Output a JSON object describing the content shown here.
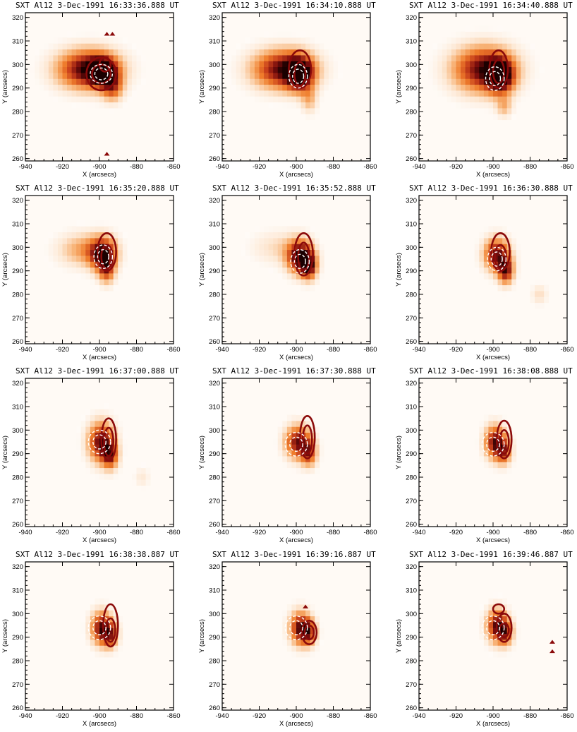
{
  "chart_data": {
    "type": "heatmap",
    "colormap": [
      "#ffffff",
      "#fde7d2",
      "#f8b57a",
      "#ef7d2c",
      "#c8401b",
      "#7a0d0d",
      "#1a0000"
    ],
    "contour_colors": {
      "hard_xray": "#8b0a0a",
      "soft_xray_peak": "#ffffff"
    },
    "common": {
      "instrument": "SXT Al12",
      "date": "3-Dec-1991",
      "suffix": "UT",
      "xlabel": "X (arcsecs)",
      "ylabel": "Y (arcsecs)",
      "xlim": [
        -940,
        -860
      ],
      "ylim": [
        259,
        322
      ],
      "xticks": [
        "-940",
        "-920",
        "-900",
        "-880",
        "-860"
      ],
      "yticks": [
        "260",
        "270",
        "280",
        "290",
        "300",
        "310",
        "320"
      ]
    },
    "panels": [
      {
        "time": "16:33:36.888",
        "sources": [
          [
            -906,
            298,
            0.95,
            12,
            6
          ],
          [
            -898,
            297,
            0.8,
            5,
            4
          ],
          [
            -893,
            290,
            0.5,
            4,
            4
          ]
        ],
        "red": [
          [
            -899,
            296,
            8,
            7
          ],
          [
            -899,
            296,
            5,
            4
          ],
          [
            -897,
            300,
            3,
            3
          ]
        ],
        "white": [
          [
            -899,
            296,
            6,
            4
          ],
          [
            -899,
            296,
            3.5,
            2.5
          ]
        ],
        "extra": [
          [
            -896,
            313
          ],
          [
            -893,
            313
          ],
          [
            -896,
            262
          ]
        ]
      },
      {
        "time": "16:34:10.888",
        "sources": [
          [
            -907,
            298,
            0.9,
            12,
            6
          ],
          [
            -898,
            296,
            0.8,
            5,
            5
          ],
          [
            -893,
            285,
            0.3,
            3,
            4
          ]
        ],
        "red": [
          [
            -898,
            298,
            6,
            8
          ],
          [
            -898,
            296,
            3,
            5
          ]
        ],
        "white": [
          [
            -899,
            295,
            5,
            5
          ],
          [
            -899,
            295,
            3,
            3
          ]
        ],
        "extra": []
      },
      {
        "time": "16:34:40.888",
        "sources": [
          [
            -905,
            298,
            0.9,
            12,
            7
          ],
          [
            -896,
            295,
            0.85,
            5,
            5
          ],
          [
            -894,
            282,
            0.3,
            3,
            3
          ]
        ],
        "red": [
          [
            -897,
            298,
            5,
            8
          ],
          [
            -897,
            297,
            3,
            5
          ]
        ],
        "white": [
          [
            -899,
            294,
            5,
            5
          ],
          [
            -899,
            294,
            3,
            3
          ]
        ],
        "extra": []
      },
      {
        "time": "16:35:20.888",
        "sources": [
          [
            -908,
            299,
            0.4,
            10,
            5
          ],
          [
            -898,
            297,
            0.85,
            5,
            5
          ],
          [
            -896,
            290,
            0.5,
            3,
            4
          ]
        ],
        "red": [
          [
            -896,
            298,
            5,
            8
          ],
          [
            -896,
            296,
            3,
            5
          ]
        ],
        "white": [
          [
            -898,
            296,
            5,
            5
          ],
          [
            -898,
            296,
            3,
            3
          ]
        ],
        "extra": []
      },
      {
        "time": "16:35:52.888",
        "sources": [
          [
            -898,
            296,
            0.95,
            5,
            5
          ],
          [
            -893,
            292,
            0.75,
            3,
            4
          ],
          [
            -910,
            300,
            0.2,
            10,
            5
          ]
        ],
        "red": [
          [
            -896,
            297,
            5,
            9
          ],
          [
            -896,
            296,
            3,
            6
          ]
        ],
        "white": [
          [
            -898,
            294,
            5,
            5
          ],
          [
            -898,
            294,
            3,
            3
          ]
        ],
        "extra": []
      },
      {
        "time": "16:36:30.888",
        "sources": [
          [
            -898,
            297,
            0.85,
            5,
            5
          ],
          [
            -893,
            290,
            0.75,
            3,
            4
          ],
          [
            -875,
            280,
            0.2,
            3,
            3
          ]
        ],
        "red": [
          [
            -896,
            298,
            5,
            8
          ],
          [
            -896,
            296,
            3,
            5
          ]
        ],
        "white": [
          [
            -898,
            295,
            5,
            5
          ],
          [
            -898,
            295,
            3,
            3
          ]
        ],
        "extra": []
      },
      {
        "time": "16:37:00.888",
        "sources": [
          [
            -899,
            295,
            0.9,
            5,
            6
          ],
          [
            -894,
            289,
            0.6,
            3,
            4
          ],
          [
            -877,
            280,
            0.15,
            3,
            3
          ]
        ],
        "red": [
          [
            -895,
            296,
            4,
            9
          ],
          [
            -895,
            295,
            2.5,
            6
          ]
        ],
        "white": [
          [
            -900,
            295,
            6,
            5
          ],
          [
            -900,
            295,
            3.5,
            3
          ]
        ],
        "extra": []
      },
      {
        "time": "16:37:30.888",
        "sources": [
          [
            -899,
            295,
            0.85,
            5,
            5
          ],
          [
            -893,
            290,
            0.55,
            3,
            4
          ]
        ],
        "red": [
          [
            -894,
            297,
            4,
            9
          ],
          [
            -894,
            296,
            2.5,
            6
          ]
        ],
        "white": [
          [
            -900,
            294,
            6,
            5
          ],
          [
            -900,
            294,
            3.5,
            3
          ]
        ],
        "extra": []
      },
      {
        "time": "16:38:08.888",
        "sources": [
          [
            -899,
            295,
            0.85,
            4,
            5
          ],
          [
            -894,
            291,
            0.55,
            3,
            4
          ]
        ],
        "red": [
          [
            -894,
            296,
            4,
            8
          ],
          [
            -894,
            295,
            2.5,
            5
          ]
        ],
        "white": [
          [
            -900,
            294,
            6,
            5
          ],
          [
            -900,
            294,
            3.5,
            3
          ]
        ],
        "extra": []
      },
      {
        "time": "16:38:38.887",
        "sources": [
          [
            -899,
            294,
            0.85,
            4,
            5
          ],
          [
            -894,
            291,
            0.55,
            3,
            4
          ]
        ],
        "red": [
          [
            -894,
            295,
            4,
            9
          ],
          [
            -894,
            293,
            2.5,
            5
          ]
        ],
        "white": [
          [
            -900,
            294,
            6,
            5
          ],
          [
            -900,
            294,
            3.5,
            3
          ]
        ],
        "extra": []
      },
      {
        "time": "16:39:16.887",
        "sources": [
          [
            -898,
            294,
            0.85,
            4,
            5
          ],
          [
            -893,
            292,
            0.55,
            3,
            4
          ]
        ],
        "red": [
          [
            -893,
            292,
            4,
            5
          ],
          [
            -893,
            292,
            2.5,
            3
          ]
        ],
        "white": [
          [
            -900,
            294,
            6,
            5
          ],
          [
            -900,
            294,
            3.5,
            3
          ]
        ],
        "extra": [
          [
            -895,
            303
          ]
        ]
      },
      {
        "time": "16:39:46.887",
        "sources": [
          [
            -898,
            295,
            0.85,
            4,
            5
          ],
          [
            -893,
            292,
            0.55,
            3,
            4
          ]
        ],
        "red": [
          [
            -894,
            294,
            4,
            6
          ],
          [
            -894,
            293,
            2.5,
            3
          ],
          [
            -897,
            302,
            3,
            2
          ]
        ],
        "white": [
          [
            -900,
            294,
            6,
            5
          ],
          [
            -900,
            294,
            3.5,
            3
          ]
        ],
        "extra": [
          [
            -868,
            288
          ],
          [
            -868,
            284
          ]
        ]
      }
    ]
  }
}
